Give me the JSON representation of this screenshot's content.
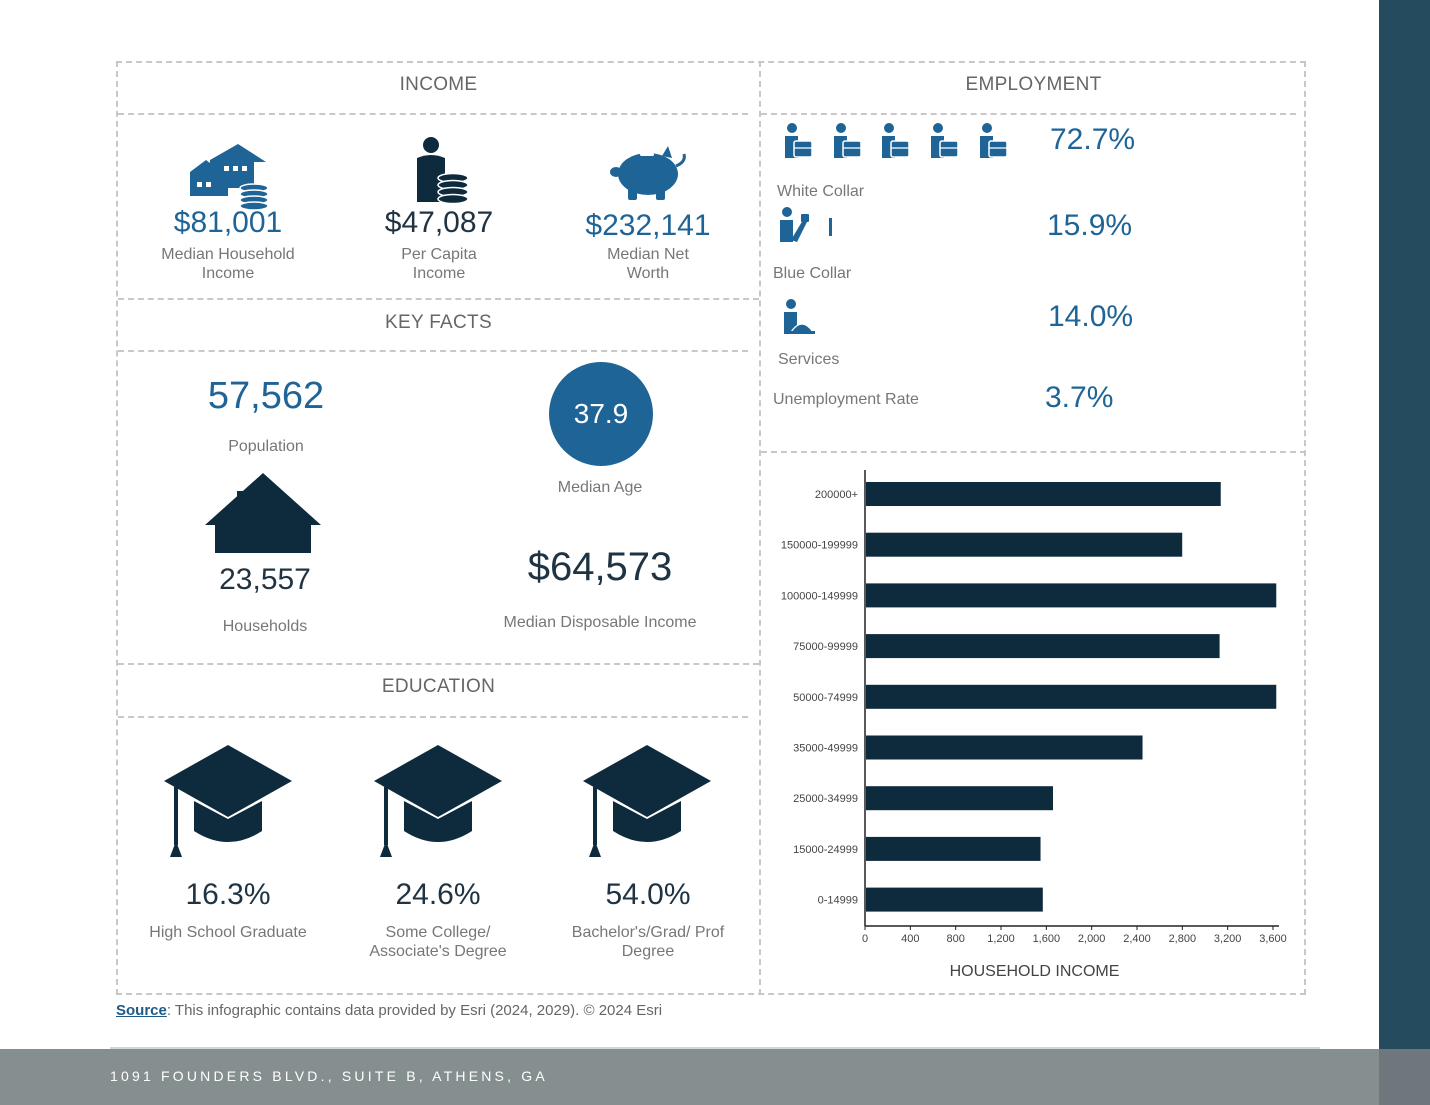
{
  "income": {
    "title": "INCOME",
    "stats": [
      {
        "value": "$81,001",
        "label_line1": "Median Household",
        "label_line2": "Income"
      },
      {
        "value": "$47,087",
        "label_line1": "Per Capita",
        "label_line2": "Income"
      },
      {
        "value": "$232,141",
        "label_line1": "Median Net",
        "label_line2": "Worth"
      }
    ]
  },
  "key_facts": {
    "title": "KEY FACTS",
    "population": {
      "value": "57,562",
      "label": "Population"
    },
    "median_age": {
      "value": "37.9",
      "label": "Median Age"
    },
    "households": {
      "value": "23,557",
      "label": "Households"
    },
    "disposable_income": {
      "value": "$64,573",
      "label": "Median Disposable Income"
    }
  },
  "education": {
    "title": "EDUCATION",
    "stats": [
      {
        "value": "16.3%",
        "label_line1": "High School Graduate",
        "label_line2": ""
      },
      {
        "value": "24.6%",
        "label_line1": "Some College/",
        "label_line2": "Associate's Degree"
      },
      {
        "value": "54.0%",
        "label_line1": "Bachelor's/Grad/ Prof",
        "label_line2": "Degree"
      }
    ]
  },
  "employment": {
    "title": "EMPLOYMENT",
    "rows": [
      {
        "label": "White Collar",
        "value": "72.7%"
      },
      {
        "label": "Blue Collar",
        "value": "15.9%"
      },
      {
        "label": "Services",
        "value": "14.0%"
      },
      {
        "label": "Unemployment Rate",
        "value": "3.7%"
      }
    ]
  },
  "chart_data": {
    "type": "bar",
    "orientation": "horizontal",
    "title": "HOUSEHOLD INCOME",
    "categories": [
      "200000+",
      "150000-199999",
      "100000-149999",
      "75000-99999",
      "50000-74999",
      "35000-49999",
      "25000-34999",
      "15000-24999",
      "0-14999"
    ],
    "values": [
      3130,
      2790,
      3620,
      3120,
      3620,
      2440,
      1650,
      1540,
      1560
    ],
    "xticks": [
      "0",
      "400",
      "800",
      "1,200",
      "1,600",
      "2,000",
      "2,400",
      "2,800",
      "3,200",
      "3,600"
    ],
    "xlim": [
      0,
      3600
    ],
    "xlabel": "HOUSEHOLD INCOME",
    "ylabel": "",
    "bar_color": "#0e2a3d"
  },
  "source": {
    "link": "Source",
    "text": ": This infographic contains data provided by Esri (2024, 2029). © 2024 Esri"
  },
  "footer": {
    "address": "1091 FOUNDERS BLVD., SUITE B, ATHENS, GA"
  },
  "colors": {
    "accent_blue": "#1e6496",
    "navy": "#0e2a3d",
    "sidebar": "#254c5e",
    "footer": "#868f8f"
  }
}
